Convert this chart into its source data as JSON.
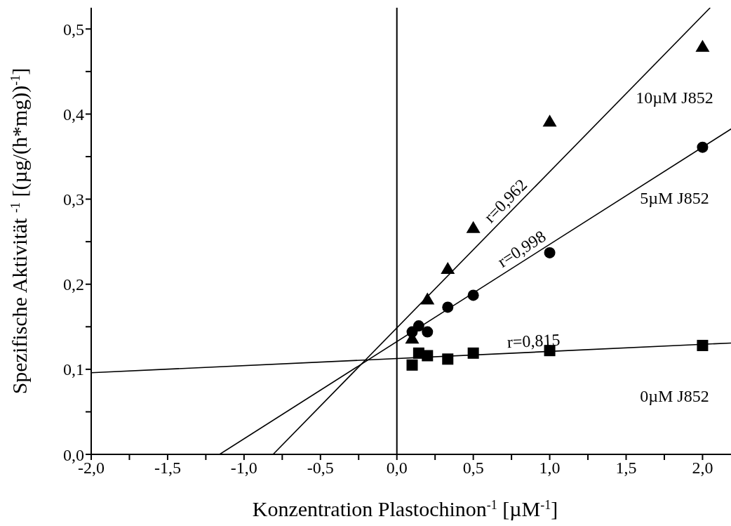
{
  "chart_data": {
    "type": "scatter",
    "xlabel": "Konzentration Plastochinon$^{-1}$ [µM$^{-1}$]",
    "ylabel": "Spezifische Aktivität $^{-1}$ [(µg/(h*mg))$^{-1}$]",
    "xlim": [
      -2.0,
      2.2
    ],
    "ylim": [
      0,
      0.525
    ],
    "xticks": [
      {
        "value": -2.0,
        "label": "-2,0"
      },
      {
        "value": -1.75,
        "label": null
      },
      {
        "value": -1.5,
        "label": "-1,5"
      },
      {
        "value": -1.25,
        "label": null
      },
      {
        "value": -1.0,
        "label": "-1,0"
      },
      {
        "value": -0.75,
        "label": null
      },
      {
        "value": -0.5,
        "label": "-0,5"
      },
      {
        "value": -0.25,
        "label": null
      },
      {
        "value": 0,
        "label": "0,0"
      },
      {
        "value": 0.25,
        "label": null
      },
      {
        "value": 0.5,
        "label": "0,5"
      },
      {
        "value": 0.75,
        "label": null
      },
      {
        "value": 1.0,
        "label": "1,0"
      },
      {
        "value": 1.25,
        "label": null
      },
      {
        "value": 1.5,
        "label": "1,5"
      },
      {
        "value": 1.75,
        "label": null
      },
      {
        "value": 2.0,
        "label": "2,0"
      }
    ],
    "yticks": [
      {
        "value": 0,
        "label": "0,0"
      },
      {
        "value": 0.05,
        "label": null
      },
      {
        "value": 0.1,
        "label": "0,1"
      },
      {
        "value": 0.15,
        "label": null
      },
      {
        "value": 0.2,
        "label": "0,2"
      },
      {
        "value": 0.25,
        "label": null
      },
      {
        "value": 0.3,
        "label": "0,3"
      },
      {
        "value": 0.35,
        "label": null
      },
      {
        "value": 0.4,
        "label": "0,4"
      },
      {
        "value": 0.45,
        "label": null
      },
      {
        "value": 0.5,
        "label": "0,5"
      }
    ],
    "ref_lines": [
      {
        "axis": "x",
        "value": 0,
        "color": "#000000"
      }
    ],
    "annotations": [
      "r=0,962",
      "r=0,998",
      "r=0,815"
    ],
    "series": [
      {
        "name": "10µM J852",
        "marker": "triangle",
        "color": "#000000",
        "x": [
          0.1,
          0.143,
          0.2,
          0.333,
          0.5,
          1,
          2
        ],
        "values": [
          0.136,
          null,
          0.182,
          0.218,
          0.266,
          0.391,
          0.479
        ]
      },
      {
        "name": "5µM J852",
        "marker": "circle",
        "color": "#000000",
        "x": [
          0.1,
          0.143,
          0.2,
          0.333,
          0.5,
          1,
          2
        ],
        "values": [
          0.144,
          0.151,
          0.144,
          0.173,
          0.187,
          0.237,
          0.361
        ]
      },
      {
        "name": "0µM J852",
        "marker": "square",
        "color": "#000000",
        "x": [
          0.1,
          0.143,
          0.2,
          0.333,
          0.5,
          1,
          2
        ],
        "values": [
          0.105,
          0.119,
          0.116,
          0.112,
          0.119,
          0.122,
          0.128
        ]
      },
      {
        "type": "line",
        "marker": "none",
        "line_style": "solid",
        "color": "#000000",
        "x": [
          -0.81,
          2.05
        ],
        "values": [
          0,
          0.525
        ]
      },
      {
        "type": "line",
        "marker": "none",
        "line_style": "solid",
        "color": "#000000",
        "x": [
          -1.16,
          2.2
        ],
        "values": [
          0,
          0.384
        ]
      },
      {
        "type": "line",
        "marker": "none",
        "line_style": "solid",
        "color": "#000000",
        "x": [
          -2.0,
          2.2
        ],
        "values": [
          0.096,
          0.131
        ]
      }
    ]
  }
}
